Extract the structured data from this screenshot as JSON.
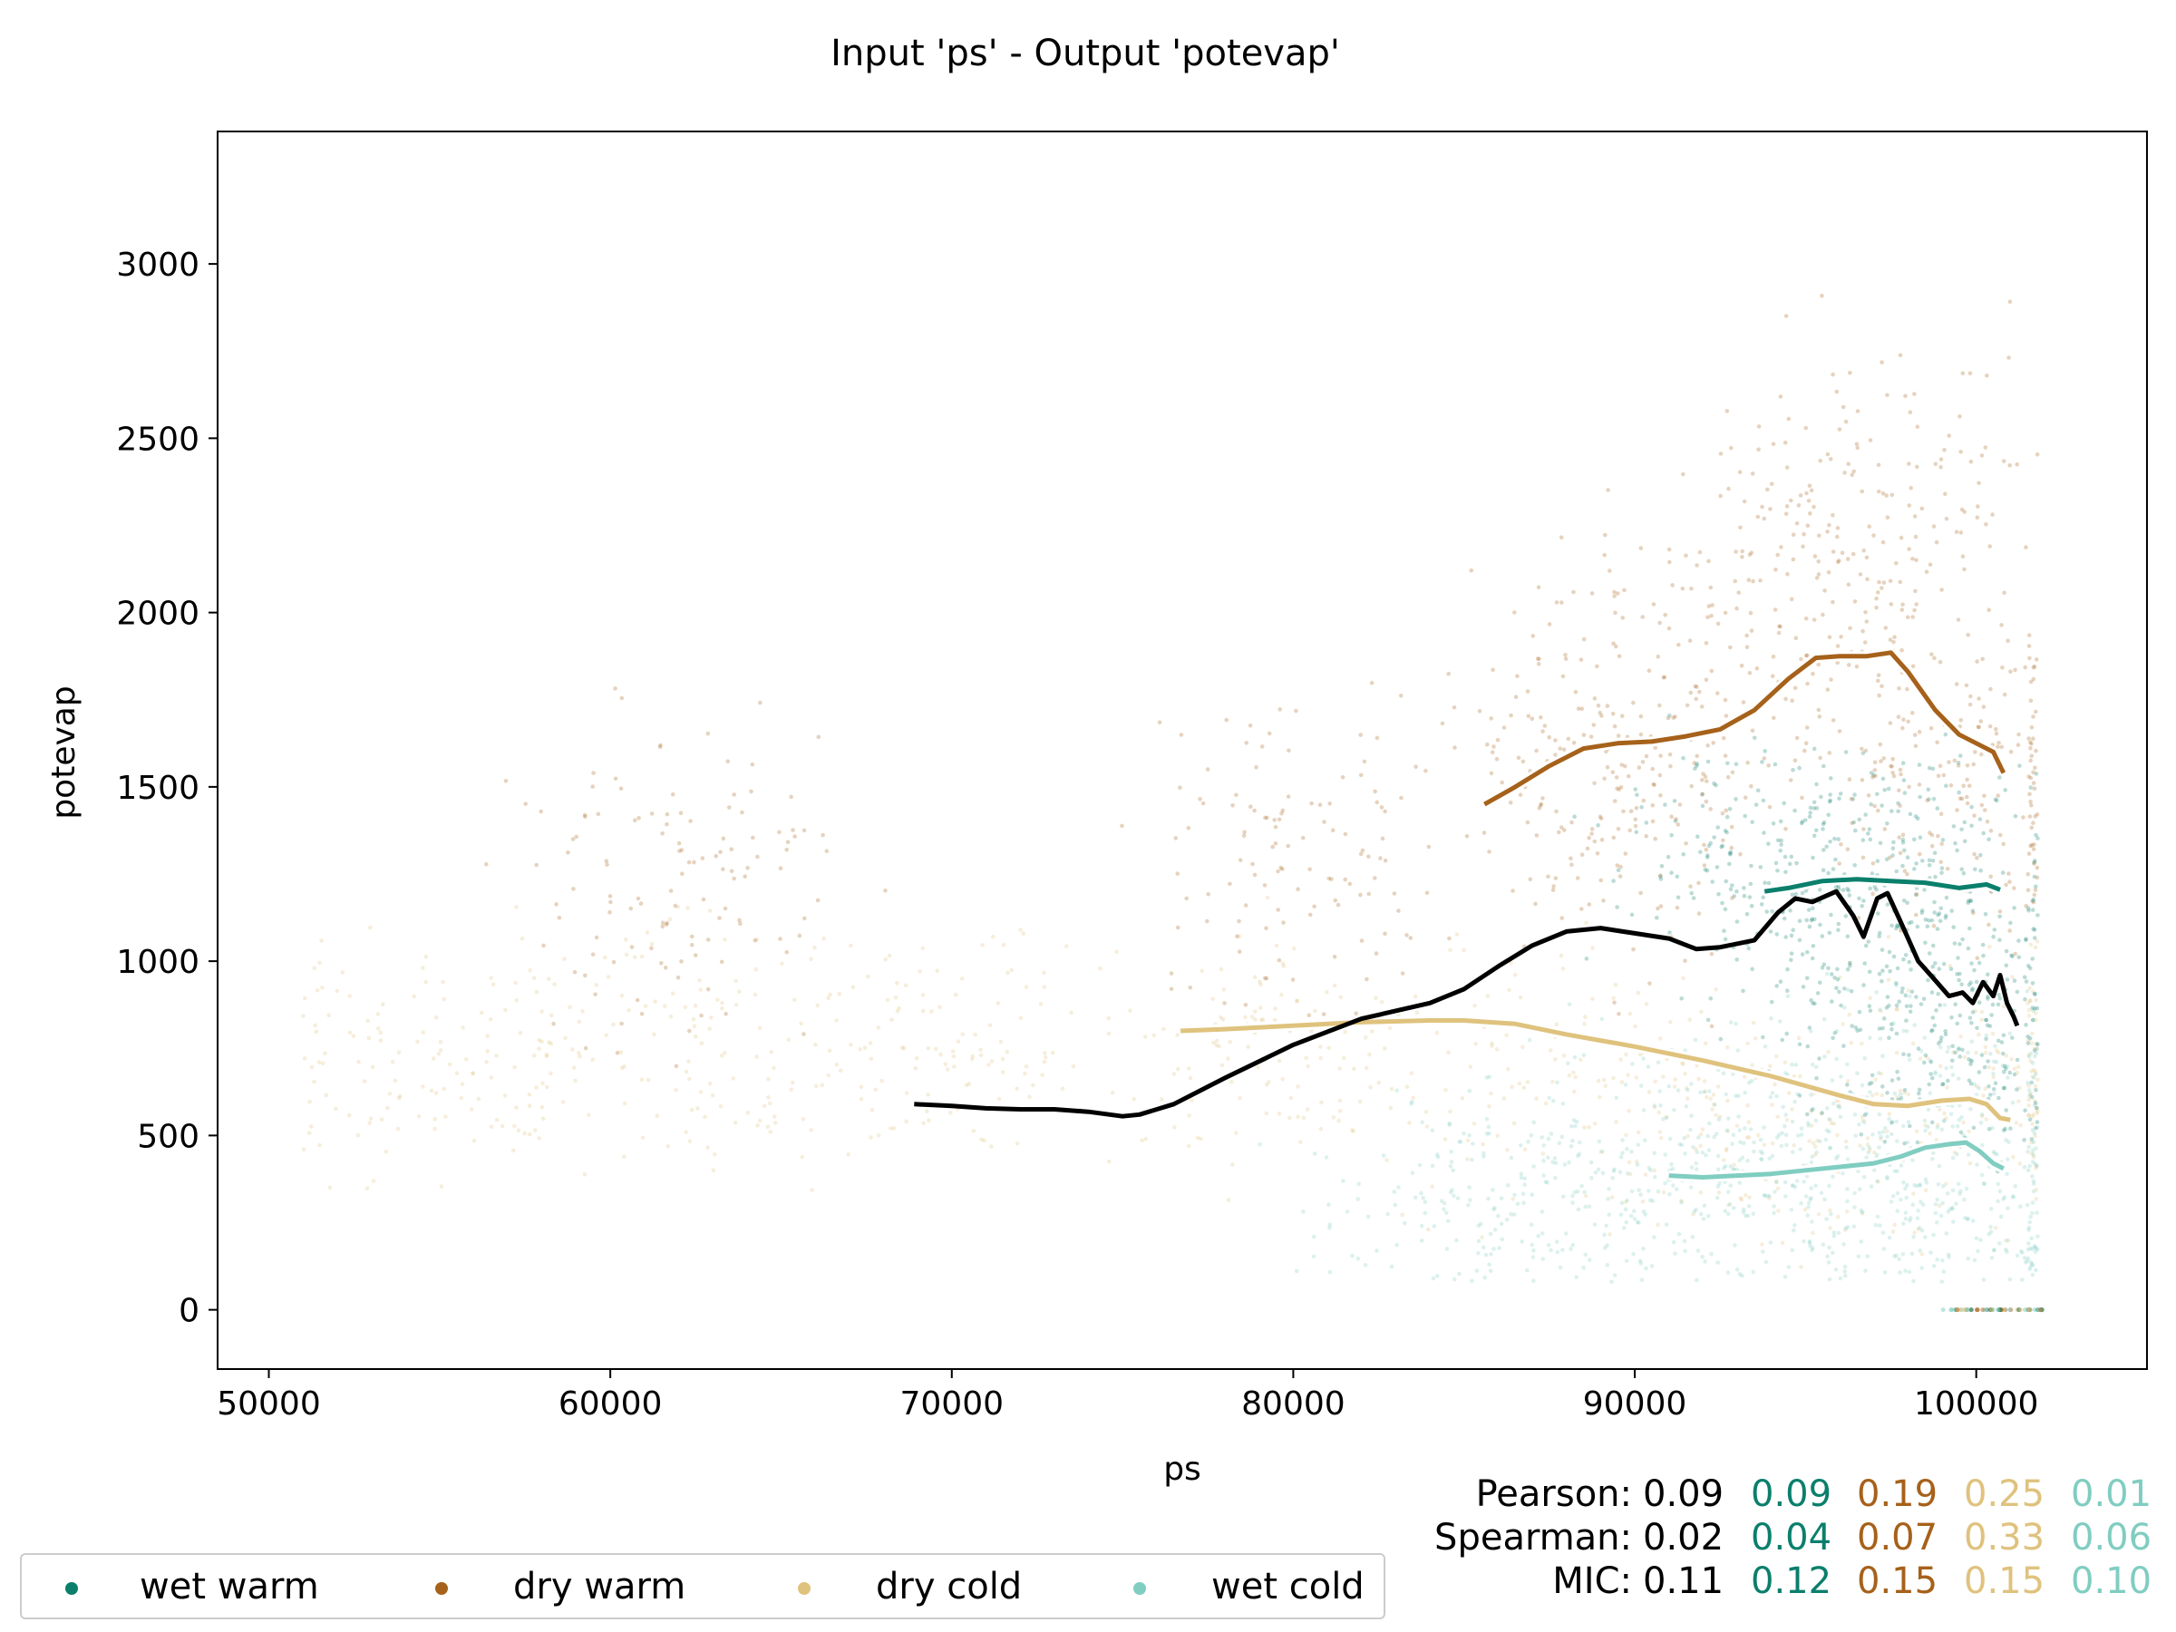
{
  "colors": {
    "overall": "#000000",
    "wet_warm": "#0a7f6c",
    "dry_warm": "#a6611a",
    "dry_cold": "#dfc27d",
    "wet_cold": "#80cdc1"
  },
  "chart_data": {
    "type": "scatter",
    "title": "Input 'ps' - Output 'potevap'",
    "xlabel": "ps",
    "ylabel": "potevap",
    "xlim": [
      48500,
      105000
    ],
    "ylim": [
      -170,
      3380
    ],
    "xticks": [
      50000,
      60000,
      70000,
      80000,
      90000,
      100000
    ],
    "yticks": [
      0,
      500,
      1000,
      1500,
      2000,
      2500,
      3000
    ],
    "grid": false,
    "legend_position": "bottom-left-outside",
    "series": [
      {
        "name": "wet warm",
        "key": "wet_warm",
        "x_range": [
          70000,
          101500
        ],
        "trend": [
          [
            93800,
            1200
          ],
          [
            94500,
            1210
          ],
          [
            95500,
            1230
          ],
          [
            96500,
            1235
          ],
          [
            97500,
            1230
          ],
          [
            98500,
            1225
          ],
          [
            99500,
            1210
          ],
          [
            100300,
            1220
          ],
          [
            100700,
            1205
          ]
        ]
      },
      {
        "name": "dry warm",
        "key": "dry_warm",
        "x_range": [
          58000,
          102200
        ],
        "trend": [
          [
            85600,
            1450
          ],
          [
            86500,
            1500
          ],
          [
            87500,
            1560
          ],
          [
            88500,
            1610
          ],
          [
            89500,
            1625
          ],
          [
            90500,
            1630
          ],
          [
            91500,
            1645
          ],
          [
            92500,
            1665
          ],
          [
            93500,
            1720
          ],
          [
            94500,
            1810
          ],
          [
            95300,
            1870
          ],
          [
            96000,
            1875
          ],
          [
            96800,
            1875
          ],
          [
            97500,
            1885
          ],
          [
            98000,
            1830
          ],
          [
            98800,
            1720
          ],
          [
            99500,
            1650
          ],
          [
            100100,
            1620
          ],
          [
            100500,
            1600
          ],
          [
            100800,
            1540
          ]
        ]
      },
      {
        "name": "dry cold",
        "key": "dry_cold",
        "x_range": [
          51000,
          102200
        ],
        "trend": [
          [
            76700,
            800
          ],
          [
            78000,
            805
          ],
          [
            80000,
            815
          ],
          [
            82000,
            825
          ],
          [
            84000,
            830
          ],
          [
            85000,
            830
          ],
          [
            86500,
            820
          ],
          [
            88000,
            790
          ],
          [
            90000,
            755
          ],
          [
            92000,
            715
          ],
          [
            94000,
            670
          ],
          [
            96000,
            615
          ],
          [
            97000,
            590
          ],
          [
            98000,
            585
          ],
          [
            99000,
            600
          ],
          [
            99800,
            605
          ],
          [
            100300,
            590
          ],
          [
            100700,
            550
          ],
          [
            101000,
            545
          ]
        ]
      },
      {
        "name": "wet cold",
        "key": "wet_cold",
        "x_range": [
          63000,
          101500
        ],
        "trend": [
          [
            91000,
            385
          ],
          [
            92000,
            380
          ],
          [
            93000,
            385
          ],
          [
            94000,
            390
          ],
          [
            95000,
            400
          ],
          [
            96000,
            410
          ],
          [
            97000,
            420
          ],
          [
            97800,
            440
          ],
          [
            98500,
            465
          ],
          [
            99200,
            475
          ],
          [
            99700,
            480
          ],
          [
            100100,
            455
          ],
          [
            100500,
            420
          ],
          [
            100800,
            405
          ]
        ]
      }
    ],
    "overall_trend": [
      [
        68900,
        590
      ],
      [
        70000,
        585
      ],
      [
        71000,
        578
      ],
      [
        72000,
        575
      ],
      [
        73000,
        575
      ],
      [
        74000,
        568
      ],
      [
        75000,
        555
      ],
      [
        75500,
        560
      ],
      [
        76500,
        590
      ],
      [
        78000,
        665
      ],
      [
        80000,
        760
      ],
      [
        82000,
        835
      ],
      [
        84000,
        880
      ],
      [
        85000,
        920
      ],
      [
        86000,
        985
      ],
      [
        87000,
        1045
      ],
      [
        88000,
        1085
      ],
      [
        89000,
        1095
      ],
      [
        90000,
        1080
      ],
      [
        91000,
        1065
      ],
      [
        91800,
        1035
      ],
      [
        92500,
        1040
      ],
      [
        93500,
        1060
      ],
      [
        94200,
        1140
      ],
      [
        94700,
        1180
      ],
      [
        95200,
        1170
      ],
      [
        95900,
        1200
      ],
      [
        96400,
        1130
      ],
      [
        96700,
        1070
      ],
      [
        97100,
        1180
      ],
      [
        97400,
        1195
      ],
      [
        97800,
        1110
      ],
      [
        98300,
        1000
      ],
      [
        98800,
        945
      ],
      [
        99200,
        900
      ],
      [
        99600,
        910
      ],
      [
        99900,
        880
      ],
      [
        100200,
        940
      ],
      [
        100500,
        900
      ],
      [
        100700,
        960
      ],
      [
        100900,
        880
      ],
      [
        101100,
        840
      ],
      [
        101200,
        815
      ]
    ],
    "scatter_summary": "dense cloud of semi-transparent points per series; zero-potevap points at 99000-102000"
  },
  "stats": {
    "rows": [
      {
        "label": "Pearson:",
        "values": [
          "0.09",
          "0.09",
          "0.19",
          "0.25",
          "0.01"
        ]
      },
      {
        "label": "Spearman:",
        "values": [
          "0.02",
          "0.04",
          "0.07",
          "0.33",
          "0.06"
        ]
      },
      {
        "label": "MIC:",
        "values": [
          "0.11",
          "0.12",
          "0.15",
          "0.15",
          "0.10"
        ]
      }
    ]
  },
  "legend": {
    "items": [
      {
        "label": "wet warm",
        "key": "wet_warm"
      },
      {
        "label": "dry warm",
        "key": "dry_warm"
      },
      {
        "label": "dry cold",
        "key": "dry_cold"
      },
      {
        "label": "wet cold",
        "key": "wet_cold"
      }
    ]
  }
}
